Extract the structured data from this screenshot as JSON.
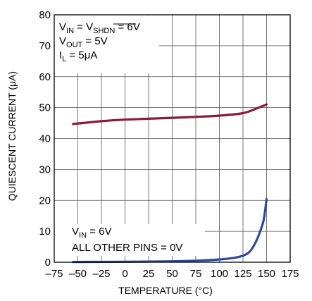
{
  "chart_data": {
    "type": "line",
    "title": "",
    "xlabel": "TEMPERATURE (°C)",
    "ylabel": "QUIESCENT CURRENT (μA)",
    "xlim": [
      -75,
      175
    ],
    "ylim": [
      0,
      80
    ],
    "x_ticks": [
      "–75",
      "–50",
      "–25",
      "0",
      "25",
      "50",
      "75",
      "100",
      "125",
      "150",
      "175"
    ],
    "y_ticks": [
      "0",
      "10",
      "20",
      "30",
      "40",
      "50",
      "60",
      "70",
      "80"
    ],
    "grid": true,
    "series": [
      {
        "color": "#8b1a3a",
        "x": [
          -55,
          -25,
          0,
          25,
          50,
          75,
          100,
          125,
          140,
          150
        ],
        "y": [
          44.7,
          45.6,
          46.1,
          46.4,
          46.7,
          47.0,
          47.4,
          48.2,
          49.8,
          51.0
        ]
      },
      {
        "color": "#2e4a9c",
        "x": [
          -55,
          0,
          50,
          75,
          100,
          115,
          125,
          132,
          138,
          143,
          147,
          150
        ],
        "y": [
          0.1,
          0.15,
          0.3,
          0.5,
          0.9,
          1.4,
          2.1,
          3.4,
          6.2,
          9.8,
          13.8,
          20.4
        ]
      }
    ],
    "annotations": {
      "top": {
        "vin": "V",
        "vin_sub": "IN",
        "eq1": " = V",
        "shdn_sub": "SHDN",
        "eq1_val": " = 6V",
        "vout": "V",
        "vout_sub": "OUT",
        "eq2": " = 5V",
        "il": "I",
        "il_sub": "L",
        "eq3": " = 5μA"
      },
      "bottom": {
        "vin": "V",
        "vin_sub": "IN",
        "eq": " = 6V",
        "line2": "ALL OTHER PINS = 0V"
      }
    }
  }
}
